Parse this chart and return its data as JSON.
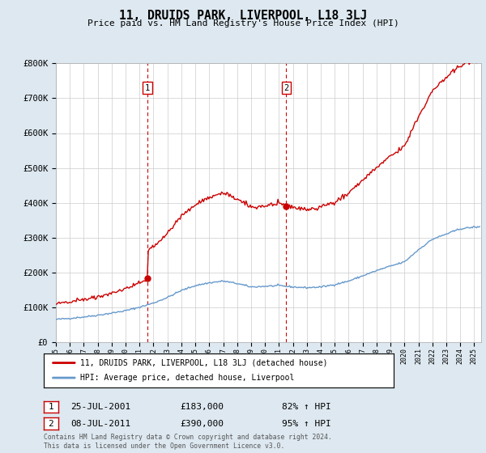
{
  "title": "11, DRUIDS PARK, LIVERPOOL, L18 3LJ",
  "subtitle": "Price paid vs. HM Land Registry's House Price Index (HPI)",
  "ylim": [
    0,
    800000
  ],
  "yticks": [
    0,
    100000,
    200000,
    300000,
    400000,
    500000,
    600000,
    700000,
    800000
  ],
  "ytick_labels": [
    "£0",
    "£100K",
    "£200K",
    "£300K",
    "£400K",
    "£500K",
    "£600K",
    "£700K",
    "£800K"
  ],
  "transaction1_date": 2001.56,
  "transaction1_price": 183000,
  "transaction1_label": "1",
  "transaction2_date": 2011.52,
  "transaction2_price": 390000,
  "transaction2_label": "2",
  "legend_line1": "11, DRUIDS PARK, LIVERPOOL, L18 3LJ (detached house)",
  "legend_line2": "HPI: Average price, detached house, Liverpool",
  "annotation1_date": "25-JUL-2001",
  "annotation1_price": "£183,000",
  "annotation1_hpi": "82% ↑ HPI",
  "annotation2_date": "08-JUL-2011",
  "annotation2_price": "£390,000",
  "annotation2_hpi": "95% ↑ HPI",
  "footer": "Contains HM Land Registry data © Crown copyright and database right 2024.\nThis data is licensed under the Open Government Licence v3.0.",
  "line_color_red": "#cc0000",
  "line_color_blue": "#6699cc",
  "vline_color": "#cc0000",
  "background_color": "#dde8f0",
  "plot_bg_color": "#ffffff",
  "grid_color": "#cccccc",
  "xlim_start": 1995,
  "xlim_end": 2025.5
}
